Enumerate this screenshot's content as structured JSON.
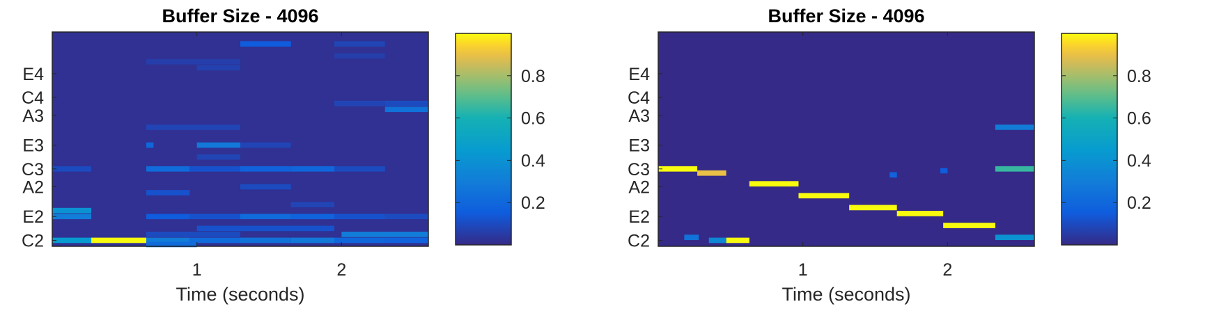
{
  "chart_data": [
    {
      "type": "heatmap",
      "title": "Buffer Size - 4096",
      "xlabel": "Time (seconds)",
      "ylabel": "",
      "xlim": [
        0,
        2.6
      ],
      "x_ticks": [
        1,
        2
      ],
      "y_ticks": [
        {
          "label": "C2",
          "semitone": 0
        },
        {
          "label": "E2",
          "semitone": 4
        },
        {
          "label": "A2",
          "semitone": 9
        },
        {
          "label": "C3",
          "semitone": 12
        },
        {
          "label": "E3",
          "semitone": 16
        },
        {
          "label": "A3",
          "semitone": 21
        },
        {
          "label": "C4",
          "semitone": 24
        },
        {
          "label": "E4",
          "semitone": 28
        }
      ],
      "ylim": [
        -1,
        35
      ],
      "colorbar": {
        "range": [
          0,
          1
        ],
        "ticks": [
          0.2,
          0.4,
          0.6,
          0.8
        ],
        "colormap": "parula"
      },
      "background": 0.02,
      "cells": [
        [
          0.0,
          0.27,
          0,
          0.45
        ],
        [
          0.27,
          0.65,
          0,
          1.0
        ],
        [
          0.65,
          0.95,
          0,
          0.3
        ],
        [
          0.95,
          1.3,
          0,
          0.22
        ],
        [
          1.3,
          1.65,
          0,
          0.25
        ],
        [
          1.65,
          1.95,
          0,
          0.28
        ],
        [
          1.95,
          2.3,
          0,
          0.2
        ],
        [
          2.3,
          2.6,
          0,
          0.18
        ],
        [
          0.65,
          1.0,
          -0.7,
          0.22
        ],
        [
          2.0,
          2.6,
          1,
          0.3
        ],
        [
          0.65,
          1.3,
          1,
          0.1
        ],
        [
          1.0,
          1.95,
          2,
          0.12
        ],
        [
          0.0,
          0.27,
          4,
          0.3
        ],
        [
          0.0,
          0.27,
          5,
          0.4
        ],
        [
          0.65,
          0.95,
          4,
          0.15
        ],
        [
          0.95,
          1.3,
          4,
          0.12
        ],
        [
          1.3,
          1.65,
          4,
          0.22
        ],
        [
          1.65,
          1.95,
          4,
          0.18
        ],
        [
          1.95,
          2.3,
          4,
          0.12
        ],
        [
          2.3,
          2.6,
          4,
          0.1
        ],
        [
          1.65,
          1.95,
          6,
          0.08
        ],
        [
          0.65,
          0.95,
          8,
          0.12
        ],
        [
          1.3,
          1.65,
          9,
          0.1
        ],
        [
          0.0,
          0.27,
          12,
          0.1
        ],
        [
          0.65,
          0.95,
          12,
          0.22
        ],
        [
          0.95,
          1.3,
          12,
          0.12
        ],
        [
          1.3,
          1.65,
          12,
          0.18
        ],
        [
          1.65,
          1.95,
          12,
          0.2
        ],
        [
          1.95,
          2.3,
          12,
          0.1
        ],
        [
          1.0,
          1.3,
          14,
          0.08
        ],
        [
          0.65,
          0.7,
          16,
          0.2
        ],
        [
          1.0,
          1.3,
          16,
          0.28
        ],
        [
          1.3,
          1.65,
          16,
          0.08
        ],
        [
          0.65,
          1.3,
          19,
          0.08
        ],
        [
          2.3,
          2.6,
          22,
          0.25
        ],
        [
          2.3,
          2.6,
          23,
          0.1
        ],
        [
          1.95,
          2.3,
          23,
          0.08
        ],
        [
          0.65,
          1.3,
          30,
          0.06
        ],
        [
          1.0,
          1.3,
          29,
          0.07
        ],
        [
          1.3,
          1.65,
          33,
          0.15
        ],
        [
          1.95,
          2.3,
          33,
          0.08
        ],
        [
          1.95,
          2.3,
          31,
          0.06
        ]
      ]
    },
    {
      "type": "heatmap",
      "title": "Buffer Size - 4096",
      "xlabel": "Time (seconds)",
      "ylabel": "",
      "xlim": [
        0,
        2.6
      ],
      "x_ticks": [
        1,
        2
      ],
      "y_ticks": [
        {
          "label": "C2",
          "semitone": 0
        },
        {
          "label": "E2",
          "semitone": 4
        },
        {
          "label": "A2",
          "semitone": 9
        },
        {
          "label": "C3",
          "semitone": 12
        },
        {
          "label": "E3",
          "semitone": 16
        },
        {
          "label": "A3",
          "semitone": 21
        },
        {
          "label": "C4",
          "semitone": 24
        },
        {
          "label": "E4",
          "semitone": 28
        }
      ],
      "ylim": [
        -1,
        35
      ],
      "colorbar": {
        "range": [
          0,
          1
        ],
        "ticks": [
          0.2,
          0.4,
          0.6,
          0.8
        ],
        "colormap": "parula"
      },
      "background": 0.0,
      "cells": [
        [
          0.0,
          0.27,
          12,
          1.0
        ],
        [
          0.27,
          0.47,
          11.3,
          0.9
        ],
        [
          0.47,
          0.63,
          0,
          1.0
        ],
        [
          0.35,
          0.47,
          0,
          0.35
        ],
        [
          0.63,
          0.97,
          9.5,
          1.0
        ],
        [
          0.97,
          1.32,
          7.5,
          1.0
        ],
        [
          1.32,
          1.65,
          5.5,
          1.0
        ],
        [
          1.65,
          1.97,
          4.5,
          1.0
        ],
        [
          1.97,
          2.33,
          2.5,
          1.0
        ],
        [
          2.33,
          2.6,
          12,
          0.65
        ],
        [
          2.33,
          2.6,
          19,
          0.3
        ],
        [
          2.33,
          2.6,
          0.5,
          0.4
        ],
        [
          0.18,
          0.28,
          0.5,
          0.25
        ],
        [
          1.6,
          1.65,
          11,
          0.18
        ],
        [
          1.95,
          2.0,
          11.7,
          0.15
        ]
      ]
    }
  ]
}
